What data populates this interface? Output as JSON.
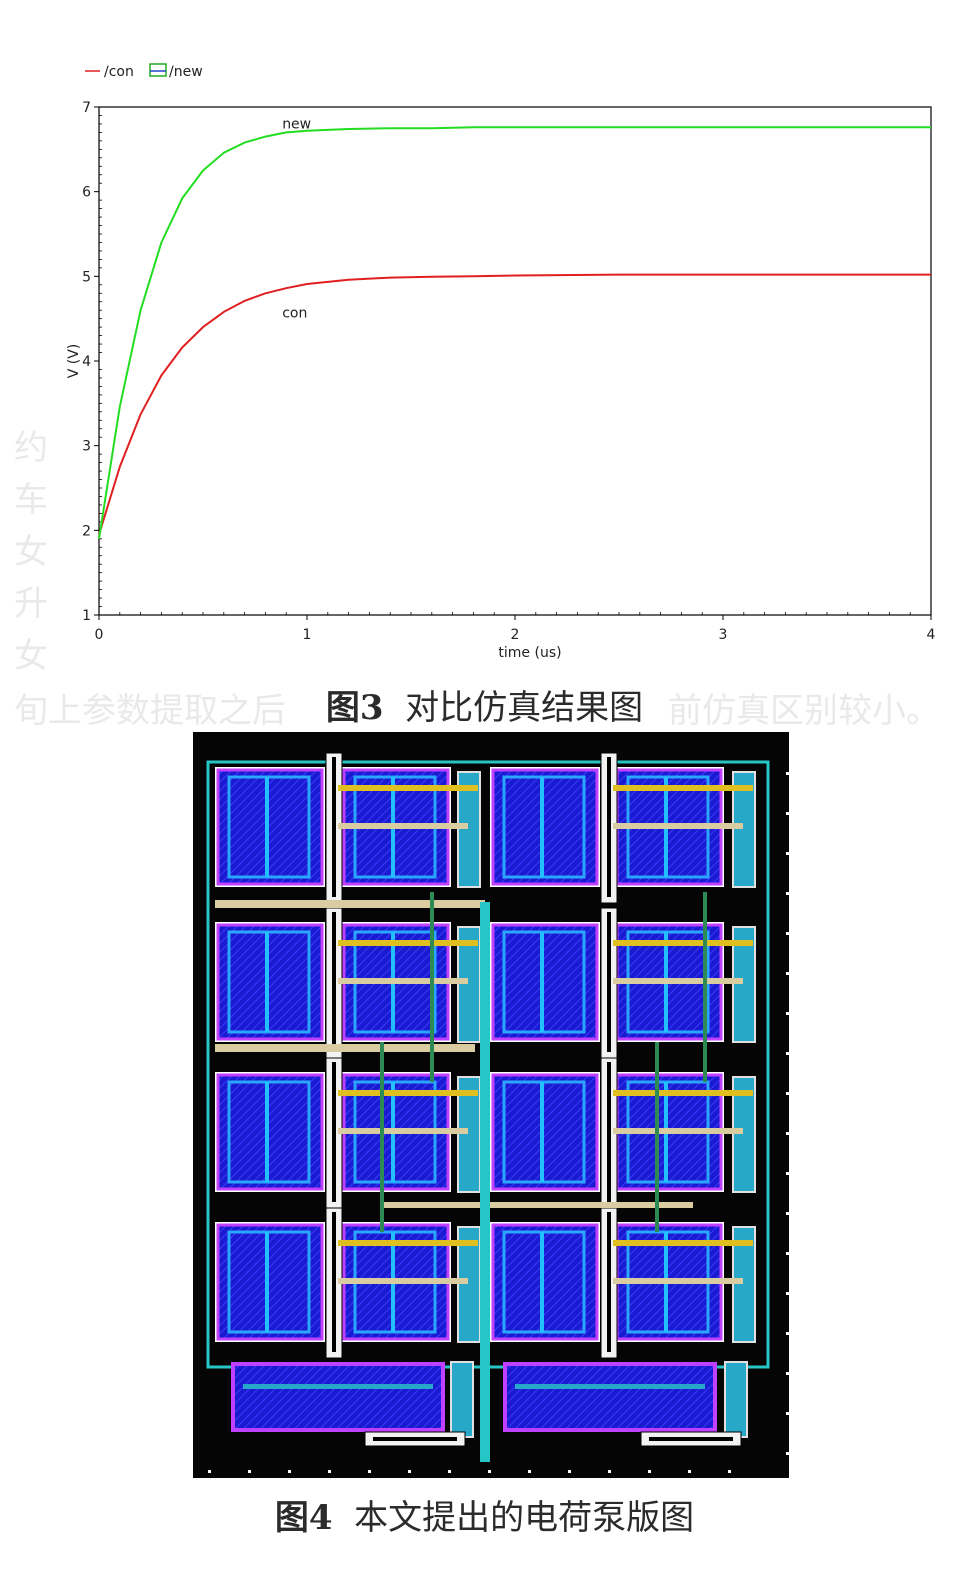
{
  "figure3": {
    "caption_number": "图3",
    "caption_text": "对比仿真结果图"
  },
  "figure4": {
    "caption_number": "图4",
    "caption_text": "本文提出的电荷泵版图"
  },
  "background_text": {
    "left_fragments": [
      "约",
      "车",
      "女",
      "升",
      "女"
    ],
    "left_bottom": "旬上参数提取之后",
    "right_bottom": "前仿真区别较小。"
  },
  "chart_data": {
    "type": "line",
    "xlabel": "time (us)",
    "ylabel": "V (V)",
    "xlim": [
      0,
      4
    ],
    "ylim": [
      1,
      7
    ],
    "x_ticks": [
      "0",
      "1",
      "2",
      "3",
      "4"
    ],
    "y_ticks": [
      "1",
      "2",
      "3",
      "4",
      "5",
      "6",
      "7"
    ],
    "legend": {
      "placement": "top-left",
      "entries": [
        "/con",
        "/new"
      ]
    },
    "annotations": [
      {
        "text": "new",
        "x": 0.9,
        "y": 6.7
      },
      {
        "text": "con",
        "x": 0.9,
        "y": 4.7
      }
    ],
    "x": [
      0,
      0.1,
      0.2,
      0.3,
      0.4,
      0.5,
      0.6,
      0.7,
      0.8,
      0.9,
      1.0,
      1.2,
      1.4,
      1.6,
      1.8,
      2.0,
      2.5,
      3.0,
      3.5,
      4.0
    ],
    "series": [
      {
        "name": "/con",
        "color": "#e02020",
        "values": [
          1.95,
          2.75,
          3.37,
          3.83,
          4.16,
          4.4,
          4.58,
          4.71,
          4.8,
          4.86,
          4.91,
          4.96,
          4.985,
          4.995,
          5.0,
          5.01,
          5.02,
          5.02,
          5.02,
          5.02
        ]
      },
      {
        "name": "/new",
        "color": "#22dd22",
        "values": [
          1.9,
          3.46,
          4.6,
          5.4,
          5.92,
          6.25,
          6.46,
          6.58,
          6.65,
          6.7,
          6.72,
          6.74,
          6.75,
          6.75,
          6.76,
          6.76,
          6.76,
          6.76,
          6.76,
          6.76
        ]
      }
    ]
  }
}
